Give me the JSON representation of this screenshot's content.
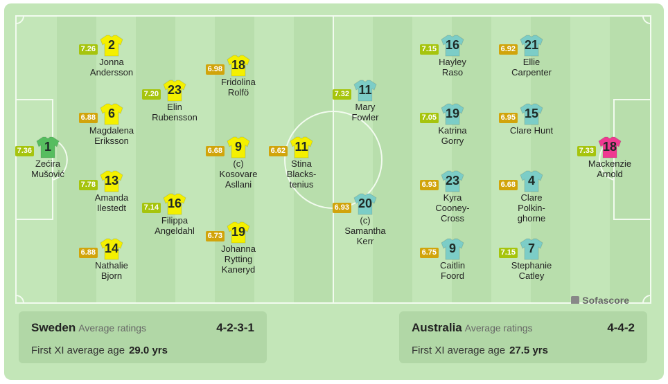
{
  "colors": {
    "home_kit": "#f4f000",
    "away_kit": "#7ccdc7",
    "gk_home": "#56bd5f",
    "gk_away": "#ef3a91",
    "rating_high": "#a6c40d",
    "rating_mid": "#d1a40b"
  },
  "brand": {
    "label": "Sofascore",
    "icon": "sofascore-logo-icon"
  },
  "home": {
    "team": "Sweden",
    "avg_label": "Average ratings",
    "formation": "4-2-3-1",
    "age_label": "First XI average age",
    "age": "29.0 yrs",
    "players": [
      {
        "id": "h1",
        "number": "1",
        "rating": "7.36",
        "rating_level": "high",
        "name1": "Zećira",
        "name2": "Mušović",
        "role": "gk"
      },
      {
        "id": "h2",
        "number": "2",
        "rating": "7.26",
        "rating_level": "high",
        "name1": "Jonna",
        "name2": "Andersson",
        "role": "out"
      },
      {
        "id": "h3",
        "number": "6",
        "rating": "6.88",
        "rating_level": "mid",
        "name1": "Magdalena",
        "name2": "Eriksson",
        "role": "out"
      },
      {
        "id": "h4",
        "number": "13",
        "rating": "7.78",
        "rating_level": "high",
        "name1": "Amanda",
        "name2": "Ilestedt",
        "role": "out"
      },
      {
        "id": "h5",
        "number": "14",
        "rating": "6.88",
        "rating_level": "mid",
        "name1": "Nathalie",
        "name2": "Bjorn",
        "role": "out"
      },
      {
        "id": "h6",
        "number": "23",
        "rating": "7.20",
        "rating_level": "high",
        "name1": "Elin",
        "name2": "Rubensson",
        "role": "out"
      },
      {
        "id": "h7",
        "number": "16",
        "rating": "7.14",
        "rating_level": "high",
        "name1": "Filippa",
        "name2": "Angeldahl",
        "role": "out"
      },
      {
        "id": "h8",
        "number": "18",
        "rating": "6.98",
        "rating_level": "mid",
        "name1": "Fridolina",
        "name2": "Rolfö",
        "role": "out"
      },
      {
        "id": "h9",
        "number": "9",
        "rating": "6.68",
        "rating_level": "mid",
        "name1": "(c)",
        "name2": "Kosovare",
        "name3": "Asllani",
        "role": "out"
      },
      {
        "id": "h10",
        "number": "19",
        "rating": "6.73",
        "rating_level": "mid",
        "name1": "Johanna",
        "name2": "Rytting",
        "name3": "Kaneryd",
        "role": "out"
      },
      {
        "id": "h11",
        "number": "11",
        "rating": "6.62",
        "rating_level": "mid",
        "name1": "Stina",
        "name2": "Blacks-",
        "name3": "tenius",
        "role": "out"
      }
    ]
  },
  "away": {
    "team": "Australia",
    "avg_label": "Average ratings",
    "formation": "4-4-2",
    "age_label": "First XI average age",
    "age": "27.5 yrs",
    "players": [
      {
        "id": "a1",
        "number": "11",
        "rating": "7.32",
        "rating_level": "high",
        "name1": "Mary",
        "name2": "Fowler",
        "role": "out"
      },
      {
        "id": "a2",
        "number": "20",
        "rating": "6.93",
        "rating_level": "mid",
        "name1": "(c)",
        "name2": "Samantha",
        "name3": "Kerr",
        "role": "out"
      },
      {
        "id": "a3",
        "number": "16",
        "rating": "7.15",
        "rating_level": "high",
        "name1": "Hayley",
        "name2": "Raso",
        "role": "out"
      },
      {
        "id": "a4",
        "number": "19",
        "rating": "7.05",
        "rating_level": "high",
        "name1": "Katrina",
        "name2": "Gorry",
        "role": "out"
      },
      {
        "id": "a5",
        "number": "23",
        "rating": "6.93",
        "rating_level": "mid",
        "name1": "Kyra",
        "name2": "Cooney-",
        "name3": "Cross",
        "role": "out"
      },
      {
        "id": "a6",
        "number": "9",
        "rating": "6.75",
        "rating_level": "mid",
        "name1": "Caitlin",
        "name2": "Foord",
        "role": "out"
      },
      {
        "id": "a7",
        "number": "21",
        "rating": "6.92",
        "rating_level": "mid",
        "name1": "Ellie",
        "name2": "Carpenter",
        "role": "out"
      },
      {
        "id": "a8",
        "number": "15",
        "rating": "6.95",
        "rating_level": "mid",
        "name1": "Clare Hunt",
        "role": "out"
      },
      {
        "id": "a9",
        "number": "4",
        "rating": "6.68",
        "rating_level": "mid",
        "name1": "Clare",
        "name2": "Polkin-",
        "name3": "ghorne",
        "role": "out"
      },
      {
        "id": "a10",
        "number": "7",
        "rating": "7.15",
        "rating_level": "high",
        "name1": "Stephanie",
        "name2": "Catley",
        "role": "out"
      },
      {
        "id": "a11",
        "number": "18",
        "rating": "7.33",
        "rating_level": "high",
        "name1": "Mackenzie",
        "name2": "Arnold",
        "role": "gk"
      }
    ]
  }
}
